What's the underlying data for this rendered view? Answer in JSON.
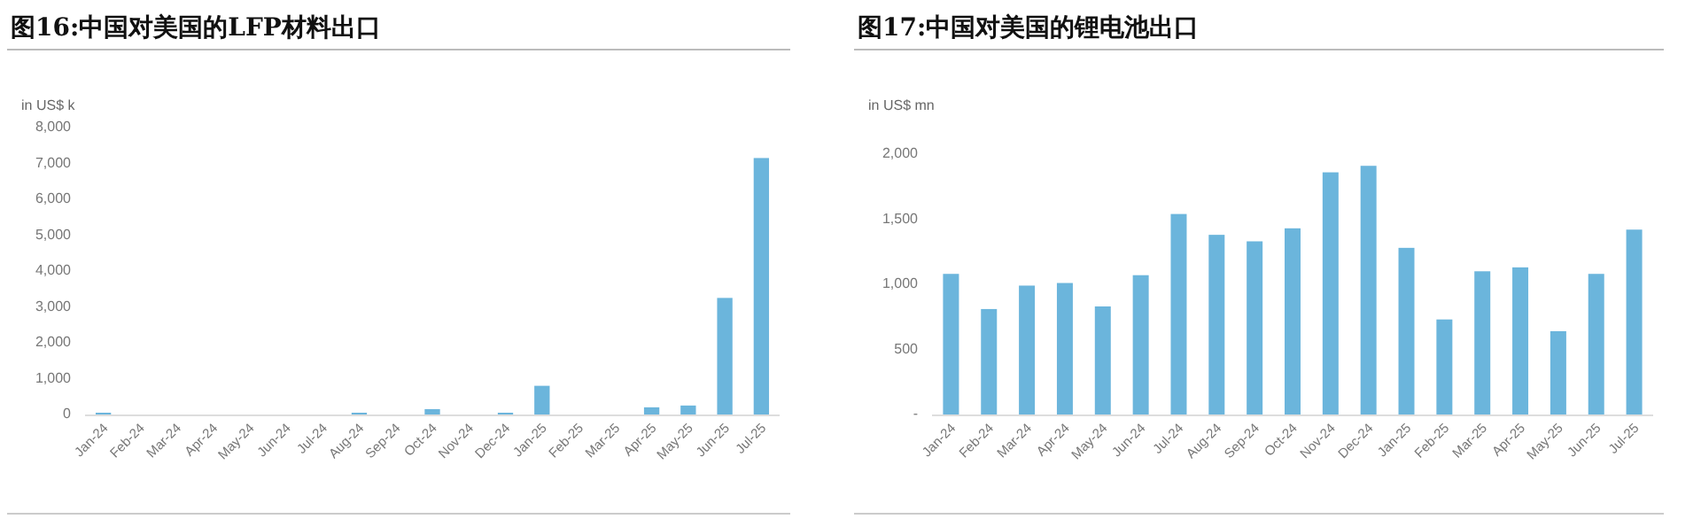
{
  "chart_data": [
    {
      "type": "bar",
      "title": "图16:中国对美国的LFP材料出口",
      "ylabel": "in US$ k",
      "color": "#6bb5dc",
      "categories": [
        "Jan-24",
        "Feb-24",
        "Mar-24",
        "Apr-24",
        "May-24",
        "Jun-24",
        "Jul-24",
        "Aug-24",
        "Sep-24",
        "Oct-24",
        "Nov-24",
        "Dec-24",
        "Jan-25",
        "Feb-25",
        "Mar-25",
        "Apr-25",
        "May-25",
        "Jun-25",
        "Jul-25"
      ],
      "values": [
        50,
        0,
        0,
        0,
        0,
        0,
        0,
        50,
        0,
        150,
        0,
        50,
        800,
        0,
        0,
        200,
        250,
        3250,
        7150
      ],
      "ylim": [
        0,
        8000
      ],
      "yticks": [
        0,
        {
          "value": 1000,
          "label": "1,000"
        },
        {
          "value": 2000,
          "label": "2,000"
        },
        {
          "value": 3000,
          "label": "3,000"
        },
        {
          "value": 4000,
          "label": "4,000"
        },
        {
          "value": 5000,
          "label": "5,000"
        },
        {
          "value": 6000,
          "label": "6,000"
        },
        {
          "value": 7000,
          "label": "7,000"
        },
        {
          "value": 8000,
          "label": "8,000"
        }
      ]
    },
    {
      "type": "bar",
      "title": "图17:中国对美国的锂电池出口",
      "ylabel": "in US$ mn",
      "color": "#6bb5dc",
      "categories": [
        "Jan-24",
        "Feb-24",
        "Mar-24",
        "Apr-24",
        "May-24",
        "Jun-24",
        "Jul-24",
        "Aug-24",
        "Sep-24",
        "Oct-24",
        "Nov-24",
        "Dec-24",
        "Jan-25",
        "Feb-25",
        "Mar-25",
        "Apr-25",
        "May-25",
        "Jun-25",
        "Jul-25"
      ],
      "values": [
        1080,
        810,
        990,
        1010,
        830,
        1070,
        1540,
        1380,
        1330,
        1430,
        1860,
        1910,
        1280,
        730,
        1100,
        1130,
        640,
        1080,
        1420
      ],
      "ylim": [
        0,
        2000
      ],
      "yticks": [
        {
          "value": 0,
          "label": "-"
        },
        500,
        {
          "value": 1000,
          "label": "1,000"
        },
        {
          "value": 1500,
          "label": "1,500"
        },
        {
          "value": 2000,
          "label": "2,000"
        }
      ]
    }
  ]
}
